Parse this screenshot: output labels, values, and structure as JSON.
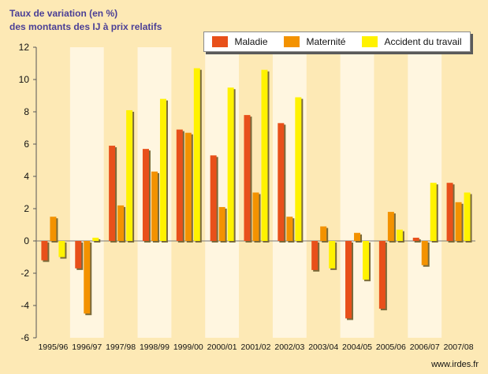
{
  "title_line1": "Taux de variation (en %)",
  "title_line2": "des montants des IJ à prix relatifs",
  "source": "www.irdes.fr",
  "colors": {
    "Maladie": "#e8501a",
    "Maternite": "#f39200",
    "Accident": "#fff200",
    "shadow": "#7a6a3a",
    "band": "#fff6e0"
  },
  "chart_data": {
    "type": "bar",
    "title": "Taux de variation (en %)\ndes montants des IJ à prix relatifs",
    "xlabel": "",
    "ylabel": "",
    "ylim": [
      -6,
      12
    ],
    "yticks": [
      -6,
      -4,
      -2,
      0,
      2,
      4,
      6,
      8,
      10,
      12
    ],
    "legend_position": "top-right",
    "categories": [
      "1995/96",
      "1996/97",
      "1997/98",
      "1998/99",
      "1999/00",
      "2000/01",
      "2001/02",
      "2002/03",
      "2003/04",
      "2004/05",
      "2005/06",
      "2006/07",
      "2007/08"
    ],
    "series": [
      {
        "name": "Maladie",
        "values": [
          -1.2,
          -1.7,
          5.9,
          5.7,
          6.9,
          5.3,
          7.8,
          7.3,
          -1.8,
          -4.8,
          -4.2,
          0.2,
          3.6
        ]
      },
      {
        "name": "Maternité",
        "values": [
          1.5,
          -4.5,
          2.2,
          4.3,
          6.7,
          2.1,
          3.0,
          1.5,
          0.9,
          0.5,
          1.8,
          -1.5,
          2.4
        ]
      },
      {
        "name": "Accident du travail",
        "values": [
          -1.0,
          0.2,
          8.1,
          8.8,
          10.7,
          9.5,
          10.6,
          8.9,
          -1.7,
          -2.4,
          0.7,
          3.6,
          3.0
        ]
      }
    ]
  }
}
